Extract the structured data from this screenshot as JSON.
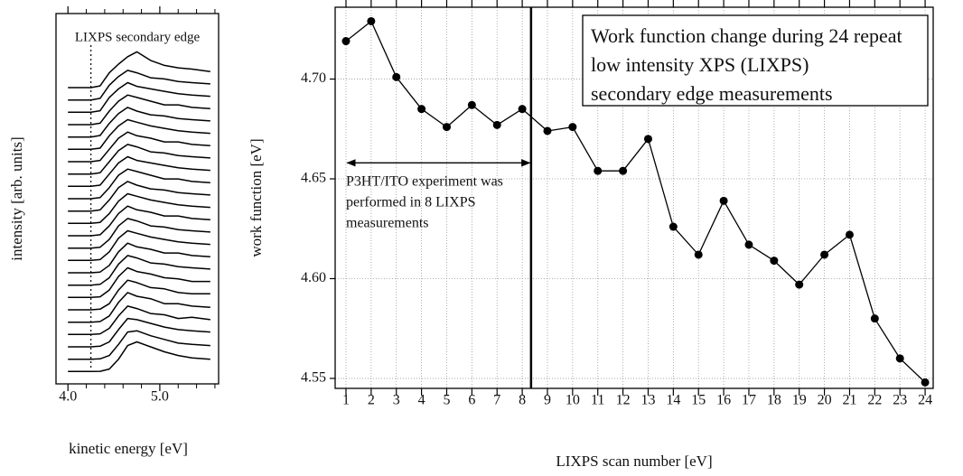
{
  "chart_data": [
    {
      "type": "line",
      "xlabel": "kinetic energy [eV]",
      "ylabel": "intensity [arb. units]",
      "annotation": "LIXPS secondary edge",
      "vline": 4.25,
      "xlim": [
        3.87,
        5.64
      ],
      "ylim": [
        0,
        30
      ],
      "xticks": [
        {
          "value": 4,
          "label": "4.0"
        },
        {
          "value": 5,
          "label": "5.0"
        }
      ],
      "xticks_minor": [
        4.2,
        4.4,
        4.6,
        4.8,
        5.2,
        5.4,
        5.6
      ],
      "x": [
        4.0,
        4.25,
        4.35,
        4.45,
        4.55,
        4.65,
        4.75,
        4.9,
        5.05,
        5.2,
        5.35,
        5.55
      ],
      "color": "#000000",
      "series": [
        {
          "values": [
            1,
            1,
            1.02,
            1.2,
            2.0,
            3.1,
            3.4,
            3.0,
            2.6,
            2.3,
            2.1,
            2.0
          ]
        },
        {
          "values": [
            2,
            2,
            2.03,
            2.3,
            3.2,
            4.2,
            4.3,
            3.9,
            3.6,
            3.3,
            3.2,
            3.1
          ]
        },
        {
          "values": [
            3,
            3,
            3.05,
            3.4,
            4.4,
            5.3,
            5.2,
            4.9,
            4.6,
            4.4,
            4.3,
            4.2
          ]
        },
        {
          "values": [
            4,
            4,
            4.05,
            4.5,
            5.5,
            6.3,
            6.1,
            5.7,
            5.6,
            5.3,
            5.4,
            5.2
          ]
        },
        {
          "values": [
            5,
            5,
            5.05,
            5.5,
            6.6,
            7.4,
            7.1,
            6.9,
            6.5,
            6.5,
            6.3,
            6.2
          ]
        },
        {
          "values": [
            6,
            6,
            6.05,
            6.5,
            7.6,
            8.4,
            8.2,
            7.8,
            7.7,
            7.4,
            7.3,
            7.3
          ]
        },
        {
          "values": [
            7,
            7,
            7.05,
            7.6,
            8.7,
            9.4,
            9.1,
            8.9,
            8.6,
            8.5,
            8.3,
            8.3
          ]
        },
        {
          "values": [
            8,
            8,
            8.06,
            8.6,
            9.7,
            10.4,
            10.2,
            9.8,
            9.7,
            9.5,
            9.4,
            9.3
          ]
        },
        {
          "values": [
            9,
            9,
            9.06,
            9.6,
            10.7,
            11.4,
            11.1,
            10.9,
            10.6,
            10.6,
            10.4,
            10.3
          ]
        },
        {
          "values": [
            10,
            10,
            10.07,
            10.7,
            11.8,
            12.4,
            12.2,
            11.9,
            11.7,
            11.5,
            11.4,
            11.3
          ]
        },
        {
          "values": [
            11,
            11,
            11.07,
            11.7,
            12.8,
            13.4,
            13.2,
            12.8,
            12.7,
            12.5,
            12.4,
            12.3
          ]
        },
        {
          "values": [
            12,
            12,
            12.08,
            12.8,
            13.8,
            14.4,
            14.1,
            13.9,
            13.6,
            13.6,
            13.4,
            13.3
          ]
        },
        {
          "values": [
            13,
            13,
            13.08,
            13.8,
            14.8,
            15.4,
            15.2,
            14.9,
            14.7,
            14.5,
            14.4,
            14.3
          ]
        },
        {
          "values": [
            14,
            14,
            14.09,
            14.9,
            15.9,
            16.4,
            16.1,
            15.8,
            15.7,
            15.5,
            15.4,
            15.3
          ]
        },
        {
          "values": [
            15,
            15,
            15.09,
            15.9,
            16.9,
            17.4,
            17.2,
            16.9,
            16.6,
            16.6,
            16.4,
            16.3
          ]
        },
        {
          "values": [
            16,
            16,
            16.1,
            17.0,
            17.9,
            18.4,
            18.1,
            17.9,
            17.7,
            17.5,
            17.4,
            17.3
          ]
        },
        {
          "values": [
            17,
            17,
            17.1,
            18.0,
            18.9,
            19.4,
            19.2,
            18.8,
            18.7,
            18.5,
            18.4,
            18.3
          ]
        },
        {
          "values": [
            18,
            18,
            18.1,
            19.0,
            19.9,
            20.4,
            20.1,
            19.9,
            19.6,
            19.6,
            19.4,
            19.3
          ]
        },
        {
          "values": [
            19,
            19,
            19.1,
            20.1,
            20.9,
            21.4,
            21.2,
            20.9,
            20.7,
            20.5,
            20.4,
            20.3
          ]
        },
        {
          "values": [
            20,
            20,
            20.12,
            21.1,
            21.9,
            22.4,
            22.1,
            21.8,
            21.7,
            21.5,
            21.4,
            21.3
          ]
        },
        {
          "values": [
            21,
            21,
            21.12,
            22.1,
            22.9,
            23.4,
            23.2,
            22.9,
            22.6,
            22.6,
            22.4,
            22.3
          ]
        },
        {
          "values": [
            22,
            22,
            22.13,
            23.2,
            23.9,
            24.4,
            24.1,
            23.9,
            23.7,
            23.5,
            23.4,
            23.3
          ]
        },
        {
          "values": [
            23,
            23,
            23.13,
            24.2,
            24.9,
            25.4,
            25.2,
            24.8,
            24.7,
            24.5,
            24.4,
            24.3
          ]
        },
        {
          "values": [
            24,
            24,
            24.14,
            25.2,
            25.9,
            26.5,
            26.9,
            26.2,
            25.8,
            25.6,
            25.5,
            25.3
          ]
        }
      ]
    },
    {
      "type": "line",
      "xlabel": "LIXPS scan number [eV]",
      "ylabel": "work function [eV]",
      "textbox": [
        "Work function change during 24 repeat",
        "low intensity XPS (LIXPS)",
        "secondary edge measurements"
      ],
      "annotation": [
        "P3HT/ITO experiment was",
        "performed in 8 LIXPS",
        "measurements"
      ],
      "vline": 8.35,
      "arrow": {
        "x": [
          1.05,
          8.3
        ],
        "y": 4.658
      },
      "xlim": [
        0.57,
        24.32
      ],
      "ylim": [
        4.545,
        4.736
      ],
      "xticks": [
        1,
        2,
        3,
        4,
        5,
        6,
        7,
        8,
        9,
        10,
        11,
        12,
        13,
        14,
        15,
        16,
        17,
        18,
        19,
        20,
        21,
        22,
        23,
        24
      ],
      "yticks": [
        {
          "value": 4.55,
          "label": "4.55"
        },
        {
          "value": 4.6,
          "label": "4.60"
        },
        {
          "value": 4.65,
          "label": "4.65"
        },
        {
          "value": 4.7,
          "label": "4.70"
        }
      ],
      "grid": true,
      "x": [
        1,
        2,
        3,
        4,
        5,
        6,
        7,
        8,
        9,
        10,
        11,
        12,
        13,
        14,
        15,
        16,
        17,
        18,
        19,
        20,
        21,
        22,
        23,
        24
      ],
      "series": [
        {
          "color": "#000000",
          "values": [
            4.719,
            4.729,
            4.701,
            4.685,
            4.676,
            4.687,
            4.677,
            4.685,
            4.674,
            4.676,
            4.654,
            4.654,
            4.67,
            4.626,
            4.612,
            4.639,
            4.617,
            4.609,
            4.597,
            4.612,
            4.622,
            4.58,
            4.56,
            4.548
          ]
        }
      ]
    }
  ]
}
